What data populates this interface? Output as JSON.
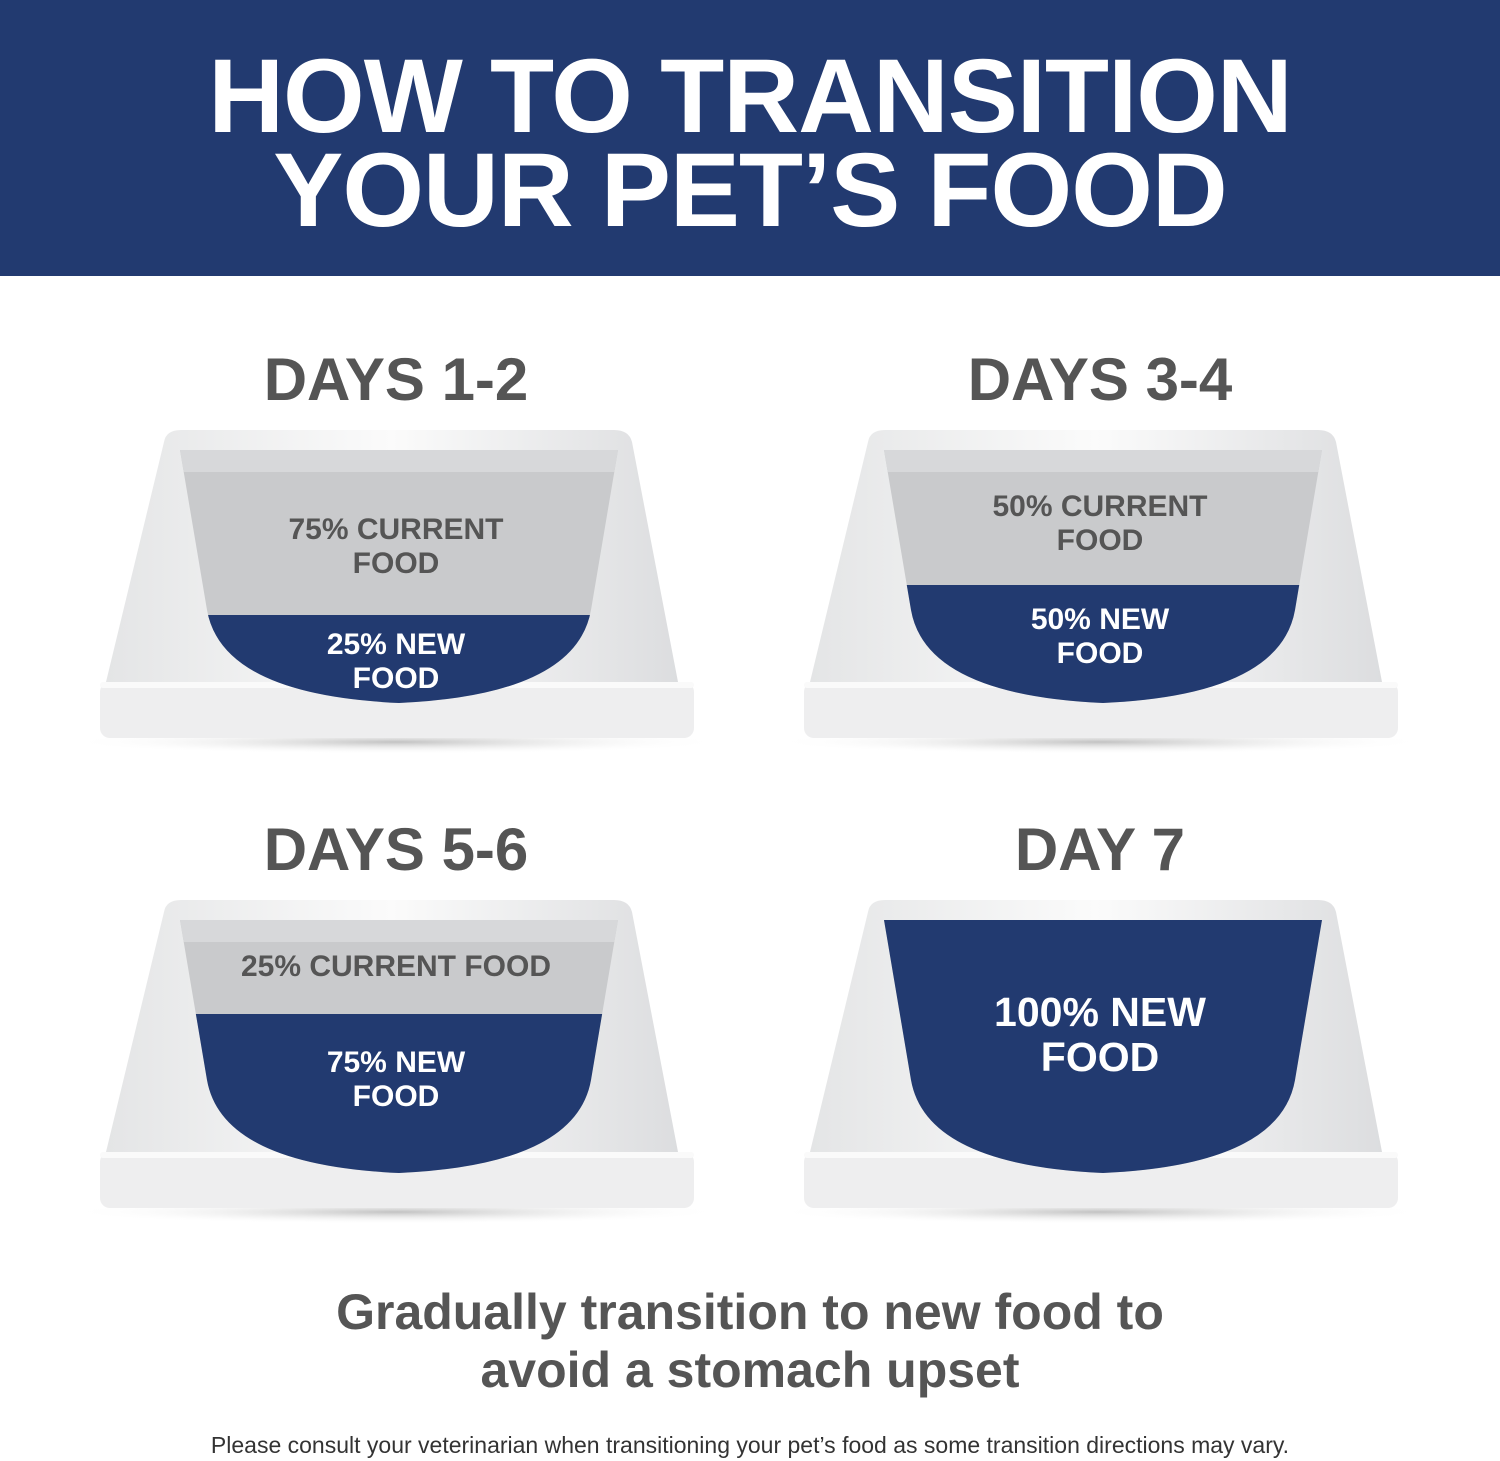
{
  "header": {
    "title_line1": "HOW TO TRANSITION",
    "title_line2": "YOUR PET’S FOOD",
    "background_color": "#223a70"
  },
  "steps": [
    {
      "title": "DAYS 1-2",
      "current_label": "75% CURRENT\nFOOD",
      "new_label": "25% NEW\nFOOD",
      "current_percent": 75,
      "new_percent": 25
    },
    {
      "title": "DAYS 3-4",
      "current_label": "50% CURRENT\nFOOD",
      "new_label": "50% NEW\nFOOD",
      "current_percent": 50,
      "new_percent": 50
    },
    {
      "title": "DAYS 5-6",
      "current_label": "25% CURRENT FOOD",
      "new_label": "75% NEW\nFOOD",
      "current_percent": 25,
      "new_percent": 75
    },
    {
      "title": "DAY 7",
      "new_label": "100% NEW\nFOOD",
      "current_percent": 0,
      "new_percent": 100
    }
  ],
  "colors": {
    "new_food": "#223a70",
    "current_food": "#c9cacc",
    "bowl": "#f1f1f2",
    "text_gray": "#555555"
  },
  "tagline": "Gradually transition to new food to\navoid a stomach upset",
  "footer": "Please consult your veterinarian when transitioning your pet’s food as some transition directions may vary."
}
